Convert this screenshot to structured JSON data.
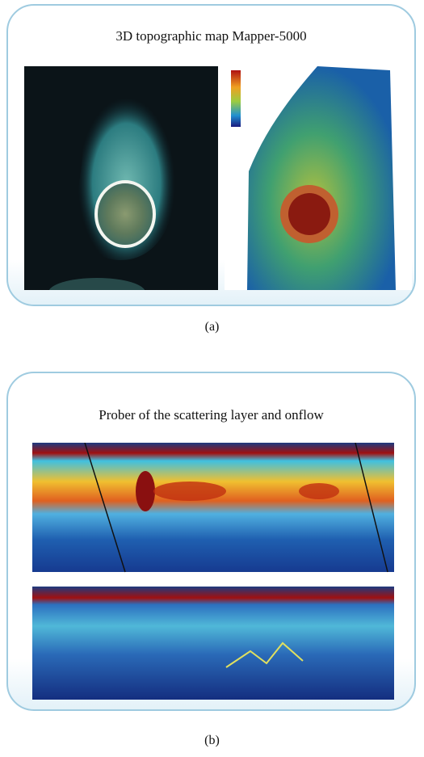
{
  "panels": [
    {
      "title": "3D topographic map Mapper-5000",
      "caption": "(a)"
    },
    {
      "title": "Prober of the scattering layer and onflow",
      "caption": "(b)"
    }
  ]
}
